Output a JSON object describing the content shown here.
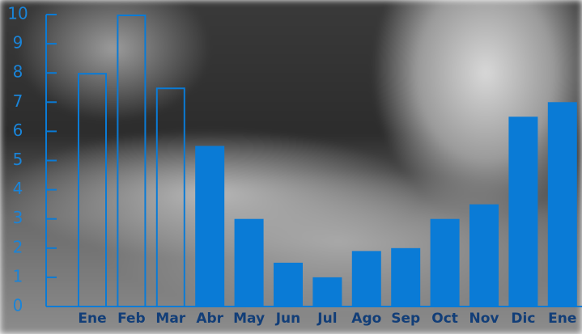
{
  "chart_data": {
    "type": "bar",
    "categories": [
      "Ene",
      "Feb",
      "Mar",
      "Abr",
      "May",
      "Jun",
      "Jul",
      "Ago",
      "Sep",
      "Oct",
      "Nov",
      "Dic",
      "Ene"
    ],
    "values": [
      8,
      10,
      7.5,
      5.5,
      3,
      1.5,
      1,
      1.9,
      2,
      3,
      3.5,
      6.5,
      7
    ],
    "filled": [
      false,
      false,
      false,
      true,
      true,
      true,
      true,
      true,
      true,
      true,
      true,
      true,
      true
    ],
    "color": "#0a7bd6",
    "ylim": [
      0,
      10
    ],
    "yticks": [
      0,
      1,
      2,
      3,
      4,
      5,
      6,
      7,
      8,
      9,
      10
    ]
  }
}
